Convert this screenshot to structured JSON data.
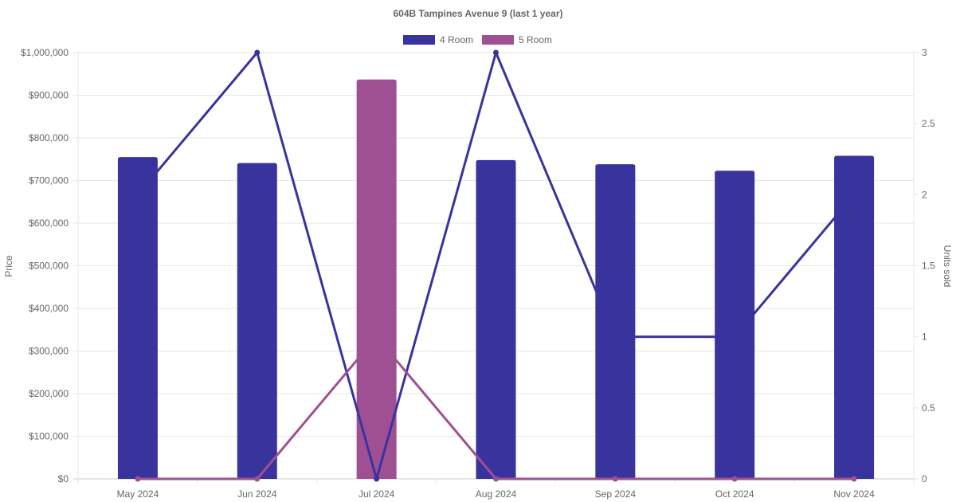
{
  "chart_data": {
    "type": "bar",
    "title": "604B Tampines Avenue 9 (last 1 year)",
    "categories": [
      "May 2024",
      "Jun 2024",
      "Jul 2024",
      "Aug 2024",
      "Sep 2024",
      "Oct 2024",
      "Nov 2024"
    ],
    "legend": [
      {
        "name": "4 Room",
        "color": "#39339e"
      },
      {
        "name": "5 Room",
        "color": "#9e5093"
      }
    ],
    "legend_position": "top-center",
    "grid": true,
    "y_left": {
      "label": "Price",
      "min": 0,
      "max": 1000000,
      "ticks": [
        "$0",
        "$100,000",
        "$200,000",
        "$300,000",
        "$400,000",
        "$500,000",
        "$600,000",
        "$700,000",
        "$800,000",
        "$900,000",
        "$1,000,000"
      ]
    },
    "y_right": {
      "label": "Units sold",
      "min": 0,
      "max": 3,
      "ticks": [
        "0",
        "0.5",
        "1",
        "1.5",
        "2",
        "2.5",
        "3"
      ]
    },
    "bar_series": [
      {
        "name": "4 Room",
        "color": "#39339e",
        "values": [
          755000,
          741000,
          null,
          748000,
          738000,
          723000,
          758000
        ]
      },
      {
        "name": "5 Room",
        "color": "#9e5093",
        "values": [
          null,
          null,
          937000,
          null,
          null,
          null,
          null
        ]
      }
    ],
    "line_series": [
      {
        "name": "4 Room",
        "color": "#39339e",
        "values": [
          2,
          3,
          0,
          3,
          1,
          1,
          2
        ]
      },
      {
        "name": "5 Room",
        "color": "#9e5093",
        "values": [
          0,
          0,
          1,
          0,
          0,
          0,
          0
        ]
      }
    ]
  }
}
